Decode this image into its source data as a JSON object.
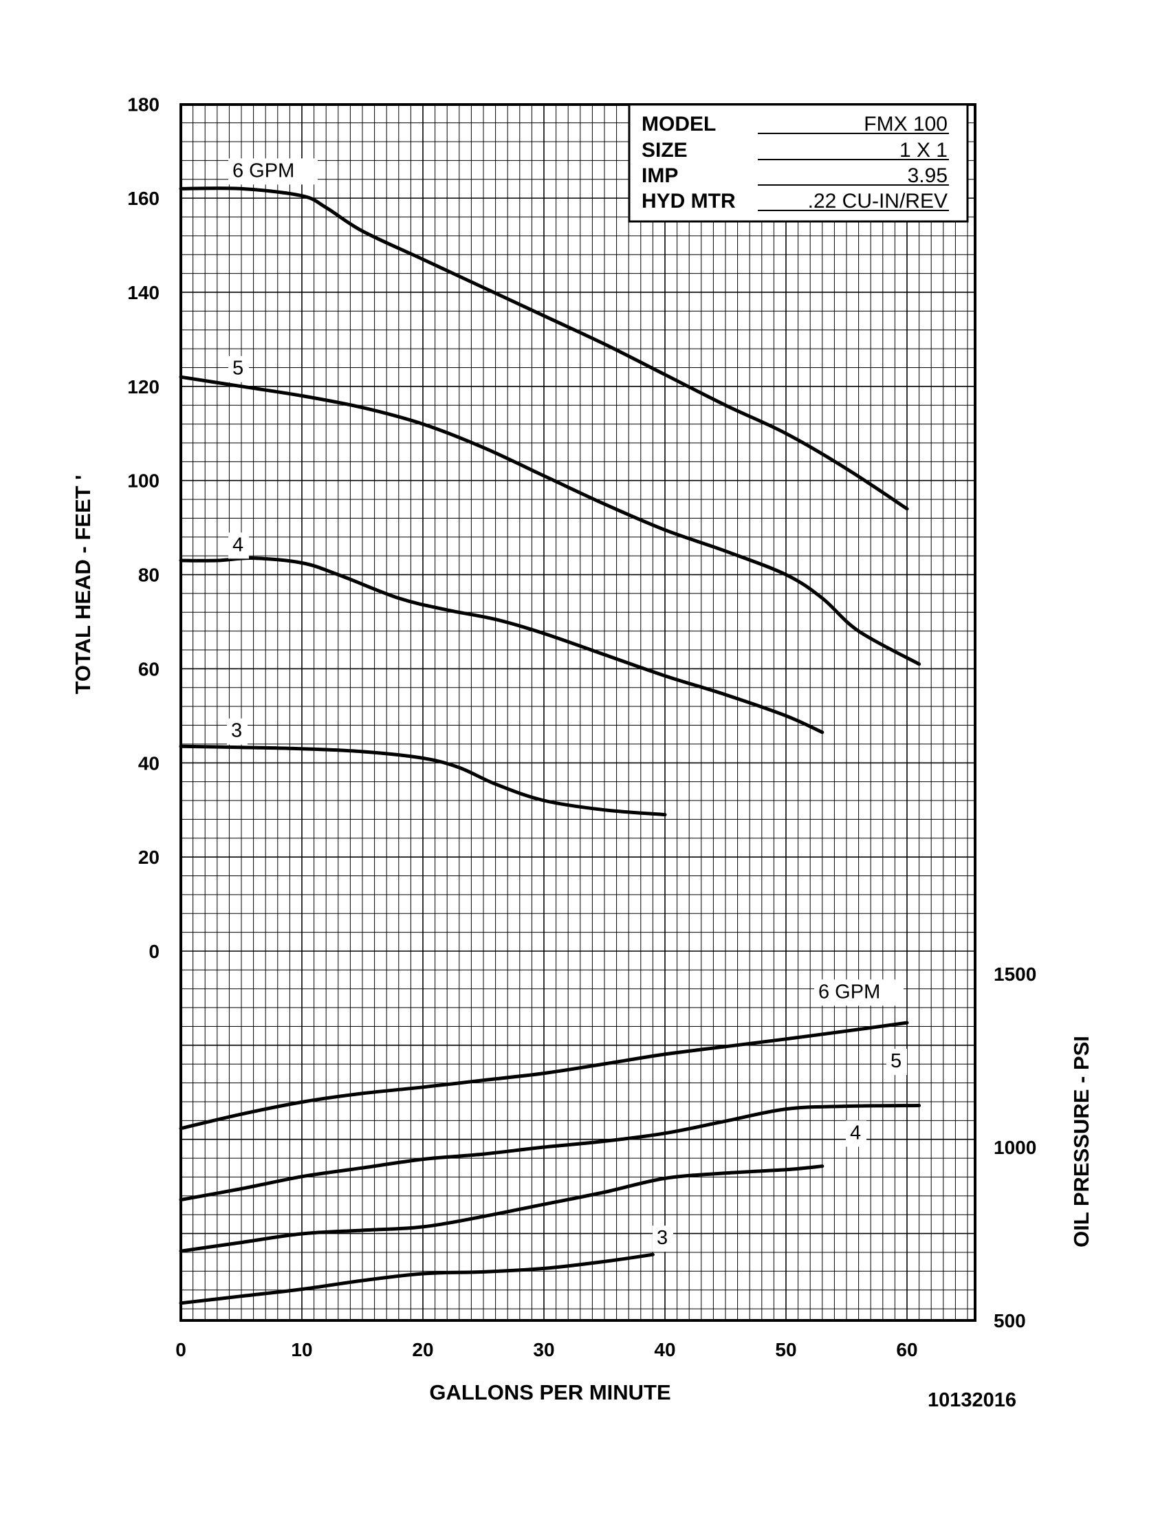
{
  "chart_data": {
    "type": "line",
    "xlabel": "GALLONS PER MINUTE",
    "ylabel": "TOTAL HEAD - FEET '",
    "y2label": "OIL PRESSURE - PSI",
    "xlim": [
      0,
      65
    ],
    "ylim": [
      -80,
      180
    ],
    "y2lim": [
      500,
      1500
    ],
    "x_ticks": [
      "0",
      "10",
      "20",
      "30",
      "40",
      "50",
      "60"
    ],
    "y_ticks": [
      "0",
      "20",
      "40",
      "60",
      "80",
      "100",
      "120",
      "140",
      "160",
      "180"
    ],
    "y2_ticks": [
      "500",
      "1000",
      "1500"
    ],
    "grid": true,
    "head_series": [
      {
        "name": "6 GPM",
        "x": [
          0,
          5,
          10,
          12,
          15,
          20,
          25,
          30,
          35,
          40,
          45,
          50,
          55,
          60
        ],
        "y": [
          162,
          162,
          160.5,
          158,
          153,
          147,
          141,
          135,
          129,
          122.5,
          116,
          110,
          102.5,
          94
        ]
      },
      {
        "name": "5",
        "x": [
          0,
          5,
          10,
          15,
          20,
          25,
          30,
          35,
          40,
          45,
          50,
          53,
          56,
          61
        ],
        "y": [
          122,
          120,
          118,
          115.5,
          112,
          107,
          101,
          95,
          89.5,
          85,
          80,
          75,
          68,
          61
        ]
      },
      {
        "name": "4",
        "x": [
          0,
          3,
          6,
          10,
          13,
          18,
          22,
          26,
          30,
          35,
          40,
          45,
          50,
          53
        ],
        "y": [
          83,
          83,
          83.5,
          82.5,
          80,
          75,
          72.5,
          70.5,
          67.5,
          63,
          58.5,
          54.5,
          50,
          46.5
        ]
      },
      {
        "name": "3",
        "x": [
          0,
          5,
          10,
          15,
          20,
          23,
          26,
          30,
          35,
          40
        ],
        "y": [
          43.5,
          43.3,
          43,
          42.4,
          41,
          39,
          35.5,
          32,
          30,
          29
        ]
      }
    ],
    "pressure_series": [
      {
        "name": "6 GPM",
        "x": [
          0,
          5,
          10,
          15,
          20,
          25,
          30,
          35,
          40,
          45,
          50,
          55,
          60
        ],
        "y": [
          1054,
          1095,
          1130,
          1155,
          1173,
          1193,
          1213,
          1240,
          1268,
          1290,
          1312,
          1335,
          1359
        ]
      },
      {
        "name": "5",
        "x": [
          0,
          5,
          10,
          15,
          20,
          25,
          30,
          35,
          40,
          45,
          50,
          55,
          61
        ],
        "y": [
          848,
          880,
          915,
          940,
          965,
          980,
          1000,
          1017,
          1040,
          1075,
          1110,
          1118,
          1120
        ]
      },
      {
        "name": "4",
        "x": [
          0,
          5,
          10,
          15,
          20,
          25,
          30,
          35,
          40,
          45,
          50,
          53
        ],
        "y": [
          700,
          725,
          750,
          760,
          770,
          800,
          835,
          870,
          910,
          925,
          935,
          945
        ]
      },
      {
        "name": "3",
        "x": [
          0,
          5,
          10,
          15,
          20,
          25,
          30,
          35,
          39
        ],
        "y": [
          550,
          570,
          590,
          615,
          635,
          640,
          650,
          670,
          690
        ]
      }
    ],
    "title_box": {
      "rows": [
        {
          "key": "MODEL",
          "value": "FMX 100"
        },
        {
          "key": "SIZE",
          "value": "1 X 1"
        },
        {
          "key": "IMP",
          "value": "3.95"
        },
        {
          "key": "HYD MTR",
          "value": ".22 CU-IN/REV"
        }
      ]
    },
    "doc_id": "10132016"
  }
}
